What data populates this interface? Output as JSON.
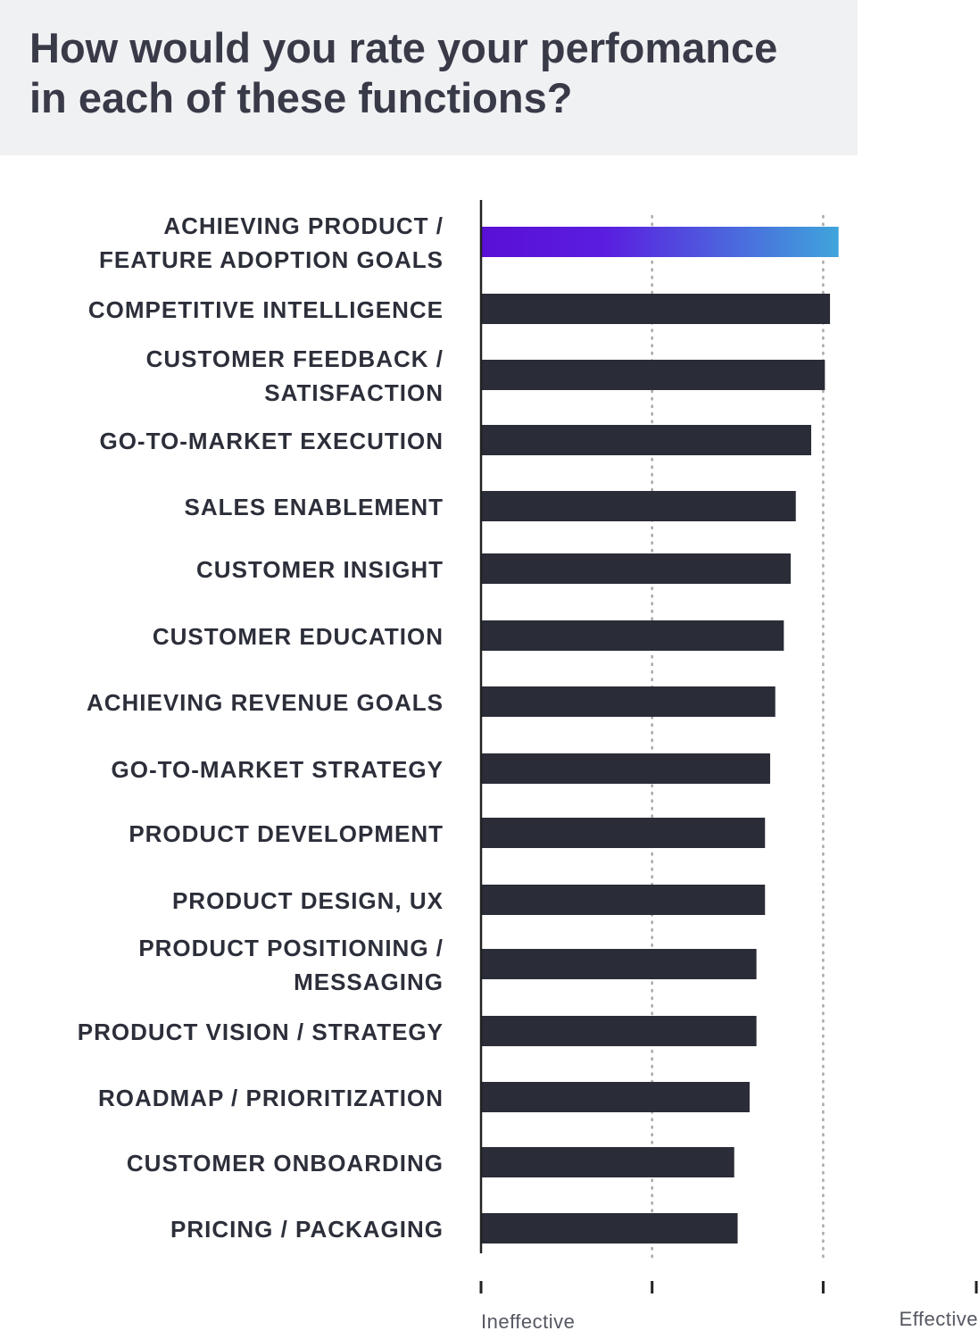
{
  "header": {
    "title_line1": "How would you rate your perfomance",
    "title_line2": "in each of these functions?"
  },
  "chart_data": {
    "type": "bar",
    "orientation": "horizontal",
    "title": "How would you rate your perfomance in each of these functions?",
    "x_low_label": "Ineffective",
    "x_high_label": "Effective",
    "xlim": [
      0,
      3
    ],
    "xticks": [
      0,
      1,
      2,
      3
    ],
    "grid": "dotted vertical at ticks 1 and 2",
    "categories": [
      [
        "ACHIEVING PRODUCT /",
        "FEATURE ADOPTION GOALS"
      ],
      [
        "COMPETITIVE INTELLIGENCE"
      ],
      [
        "CUSTOMER FEEDBACK /",
        "SATISFACTION"
      ],
      [
        "GO-TO-MARKET EXECUTION"
      ],
      [
        "SALES ENABLEMENT"
      ],
      [
        "CUSTOMER INSIGHT"
      ],
      [
        "CUSTOMER EDUCATION"
      ],
      [
        "ACHIEVING REVENUE GOALS"
      ],
      [
        "GO-TO-MARKET STRATEGY"
      ],
      [
        "PRODUCT DEVELOPMENT"
      ],
      [
        "PRODUCT DESIGN, UX"
      ],
      [
        "PRODUCT POSITIONING /",
        "MESSAGING"
      ],
      [
        "PRODUCT VISION / STRATEGY"
      ],
      [
        "ROADMAP / PRIORITIZATION"
      ],
      [
        "CUSTOMER ONBOARDING"
      ],
      [
        "PRICING / PACKAGING"
      ]
    ],
    "values": [
      2.09,
      2.04,
      2.01,
      1.93,
      1.84,
      1.81,
      1.77,
      1.72,
      1.69,
      1.66,
      1.66,
      1.61,
      1.61,
      1.57,
      1.48,
      1.5
    ],
    "highlight_index": 0,
    "colors": {
      "bar": "#2a2c37",
      "highlight_start": "#5a0fd6",
      "highlight_end": "#3fa5db",
      "axis": "#222222",
      "grid": "#a8a8a8"
    }
  }
}
